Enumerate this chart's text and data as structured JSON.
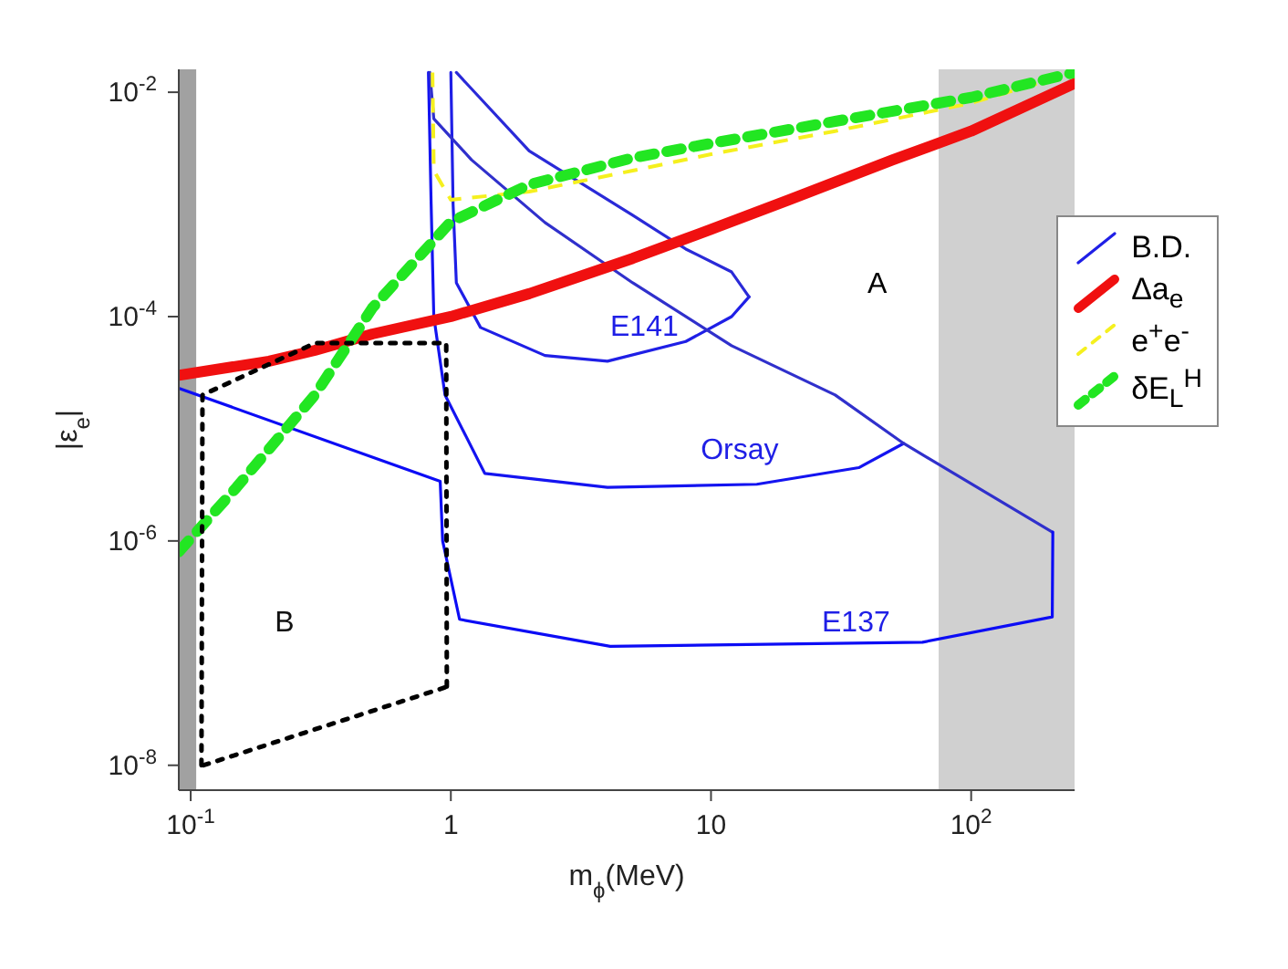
{
  "chart_data": {
    "type": "line",
    "xlabel": "m$_{ϕ}$(MeV)",
    "ylabel": "|ε$_{e}$|",
    "log": "xy",
    "grid": false,
    "legend": "top right",
    "xlim": [
      0.09,
      250
    ],
    "ylim": [
      6e-09,
      0.016
    ],
    "xticks": [
      {
        "value": 0.1,
        "label": "10$^{-1}$"
      },
      1,
      10,
      {
        "value": 100,
        "label": "10$^{2}$"
      }
    ],
    "yticks": [
      {
        "value": 1e-08,
        "label": "10$^{-8}$"
      },
      {
        "value": 1e-06,
        "label": "10$^{-6}$"
      },
      {
        "value": 0.0001,
        "label": "10$^{-4}$"
      },
      {
        "value": 0.01,
        "label": "10$^{-2}$"
      }
    ],
    "series": [
      {
        "name": "B.D.",
        "color": "#1f1fe6",
        "line_style": "solid",
        "x": [
          1.0,
          1.02,
          1.05,
          1.3,
          2.3,
          4,
          8,
          12,
          14
        ],
        "values": [
          0.015,
          0.001,
          0.0002,
          8e-05,
          4.5e-05,
          4e-05,
          6e-05,
          0.0001,
          0.00015
        ]
      },
      {
        "color": "#2a2ad8",
        "line_style": "solid",
        "x": [
          1.05,
          2,
          5,
          8,
          12,
          14
        ],
        "values": [
          0.015,
          0.003,
          0.0008,
          0.0004,
          0.00025,
          0.00015
        ]
      },
      {
        "color": "#1414f0",
        "line_style": "solid",
        "x": [
          0.82,
          0.84,
          0.86,
          0.95,
          1.35,
          4,
          15,
          37,
          55
        ],
        "values": [
          0.015,
          0.001,
          0.0001,
          2e-05,
          4e-06,
          3e-06,
          3.2e-06,
          4.5e-06,
          7.4e-06
        ]
      },
      {
        "color": "#3030cc",
        "line_style": "solid",
        "x": [
          0.83,
          0.86,
          1.2,
          2.3,
          5,
          12,
          30,
          55,
          205
        ],
        "values": [
          0.015,
          0.0058,
          0.0025,
          0.00069,
          0.0002,
          5.5e-05,
          2e-05,
          7.4e-06,
          1.2e-06
        ]
      },
      {
        "color": "#0c0cf5",
        "line_style": "solid",
        "x": [
          0.09,
          0.91,
          0.93,
          1.08,
          4.1,
          65,
          205,
          206
        ],
        "values": [
          2.3e-05,
          3.4e-06,
          1e-06,
          2e-07,
          1.15e-07,
          1.25e-07,
          2.1e-07,
          1.2e-06
        ]
      },
      {
        "name": "Δa$_{e}$",
        "color": "#f01010",
        "line_style": "solid",
        "x": [
          0.09,
          0.2,
          0.3,
          0.5,
          1,
          2,
          5,
          10,
          20,
          50,
          100,
          250
        ],
        "values": [
          3e-05,
          4e-05,
          5e-05,
          7e-05,
          0.0001,
          0.00016,
          0.00033,
          0.0006,
          0.0011,
          0.0025,
          0.0045,
          0.012
        ]
      },
      {
        "name": "e$^{+}$e$^{-}$",
        "color": "#f5f01e",
        "line_style": "dashed",
        "x": [
          0.85,
          0.86,
          1,
          2,
          5,
          10,
          30,
          100,
          250
        ],
        "values": [
          0.015,
          0.002,
          0.0011,
          0.0013,
          0.002,
          0.0028,
          0.0045,
          0.008,
          0.015
        ]
      },
      {
        "name": "δE$_{L}$$^{H}$",
        "color": "#22e622",
        "line_style": "dotted",
        "x": [
          0.09,
          0.15,
          0.3,
          0.5,
          1,
          2,
          5,
          10,
          30,
          100,
          250
        ],
        "values": [
          8e-07,
          3e-06,
          2e-05,
          0.00012,
          0.0007,
          0.0015,
          0.0026,
          0.0035,
          0.0055,
          0.009,
          0.015
        ]
      },
      {
        "color": "#000000",
        "line_style": "dotted",
        "x": [
          0.11,
          0.111,
          0.3,
          0.96,
          0.965
        ],
        "values": [
          1e-08,
          2e-05,
          5.8e-05,
          5.8e-05,
          5e-08
        ]
      },
      {
        "color": "#000000",
        "line_style": "dotted",
        "x": [
          0.112,
          0.965
        ],
        "values": [
          1e-08,
          5e-08
        ]
      }
    ],
    "bands": [
      {
        "axis": "x",
        "from": 0.09,
        "to": 0.105,
        "color": "#8a8a8a"
      },
      {
        "axis": "x",
        "from": 75,
        "to": 250,
        "color": "#c4c4c4"
      }
    ],
    "annotations": [
      "A",
      "B",
      "E141",
      "Orsay",
      "E137"
    ]
  }
}
